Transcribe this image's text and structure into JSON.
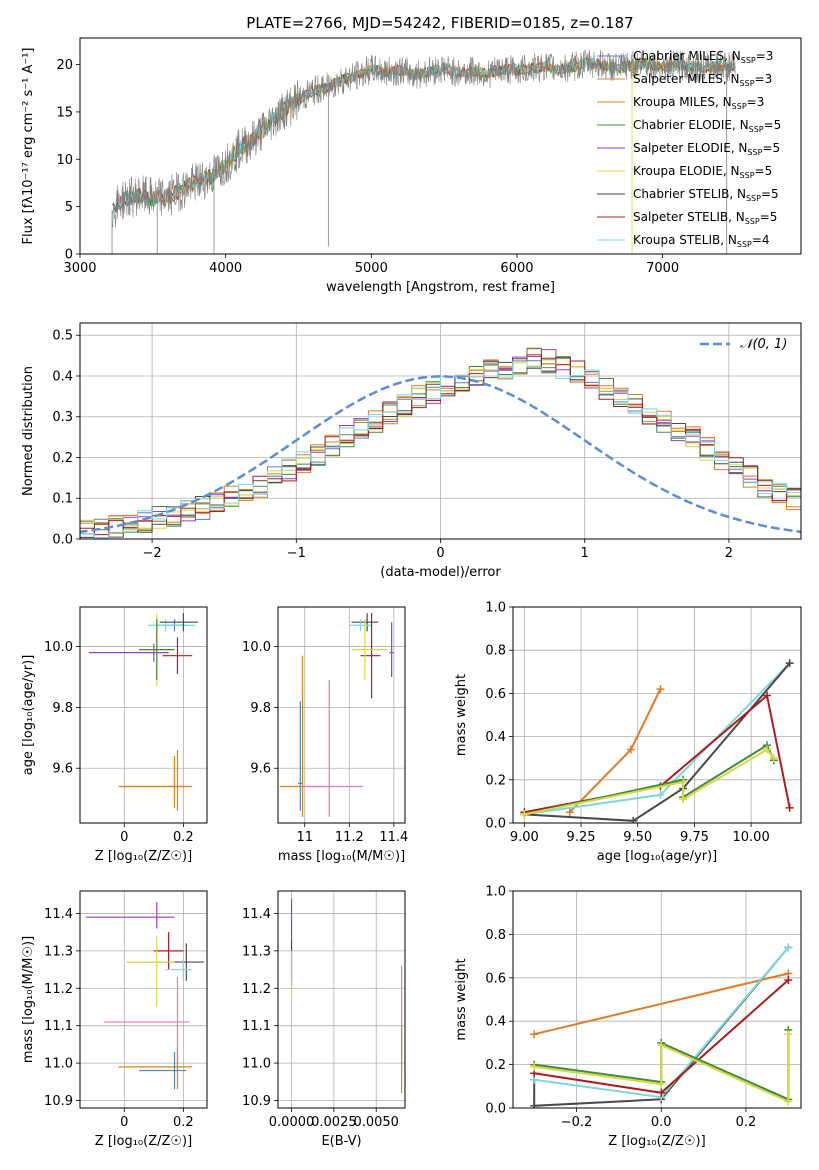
{
  "title": "PLATE=2766, MJD=54242, FIBERID=0185, z=0.187",
  "colors": {
    "Chabrier MILES": "#5b7fbf",
    "Salpeter MILES": "#e07b2a",
    "Kroupa MILES": "#d6861a",
    "Chabrier ELODIE": "#3f8a3f",
    "Salpeter ELODIE": "#9b3fc6",
    "Kroupa ELODIE": "#d4d93f",
    "Chabrier STELIB": "#4a4a4a",
    "Salpeter STELIB": "#b01c1c",
    "Kroupa STELIB": "#7fd6e0",
    "gauss": "#5b8ed6",
    "spectrum": "#808080"
  },
  "chart_data": [
    {
      "type": "line",
      "xlabel": "wavelength [Angstrom, rest frame]",
      "ylabel": "Flux [fλ10⁻¹⁷ erg cm⁻² s⁻¹ A⁻¹]",
      "xlim": [
        3000,
        7950
      ],
      "ylim": [
        0,
        22.8
      ],
      "xticks": [
        3000,
        4000,
        5000,
        6000,
        7000
      ],
      "yticks": [
        0,
        5,
        10,
        15,
        20
      ],
      "spectrum_outline": {
        "x": [
          3220,
          3300,
          3400,
          3500,
          3600,
          3700,
          3800,
          3900,
          4000,
          4100,
          4200,
          4300,
          4400,
          4500,
          4600,
          4700,
          4800,
          4900,
          5000,
          5100,
          5200,
          5300,
          5400,
          5500,
          5600,
          5700,
          5800,
          5900,
          6000,
          6100,
          6200,
          6300,
          6400,
          6500,
          6600,
          6700,
          6800,
          6900,
          7000,
          7100,
          7200,
          7300,
          7400,
          7500
        ],
        "y": [
          4.6,
          5.8,
          6.2,
          5.9,
          6.0,
          6.8,
          7.6,
          8.2,
          9.5,
          11.2,
          12.2,
          13.8,
          15.2,
          16.3,
          17.2,
          17.6,
          18.4,
          18.8,
          19.5,
          19.2,
          19.4,
          18.9,
          19.3,
          19.6,
          19.1,
          19.3,
          19.0,
          19.5,
          19.4,
          19.6,
          19.8,
          19.5,
          19.8,
          20.2,
          19.9,
          19.6,
          20.0,
          20.1,
          19.7,
          19.9,
          19.8,
          19.6,
          19.9,
          19.7
        ]
      },
      "legend": [
        {
          "label": "Chabrier MILES, N",
          "sub": "SSP",
          "tail": "=3"
        },
        {
          "label": "Salpeter MILES, N",
          "sub": "SSP",
          "tail": "=3"
        },
        {
          "label": "Kroupa MILES, N",
          "sub": "SSP",
          "tail": "=3"
        },
        {
          "label": "Chabrier ELODIE, N",
          "sub": "SSP",
          "tail": "=5"
        },
        {
          "label": "Salpeter ELODIE, N",
          "sub": "SSP",
          "tail": "=5"
        },
        {
          "label": "Kroupa ELODIE, N",
          "sub": "SSP",
          "tail": "=5"
        },
        {
          "label": "Chabrier STELIB, N",
          "sub": "SSP",
          "tail": "=5"
        },
        {
          "label": "Salpeter STELIB, N",
          "sub": "SSP",
          "tail": "=5"
        },
        {
          "label": "Kroupa STELIB, N",
          "sub": "SSP",
          "tail": "=4"
        }
      ]
    },
    {
      "type": "histogram",
      "xlabel": "(data-model)/error",
      "ylabel": "Normed distribution",
      "xlim": [
        -2.5,
        2.5
      ],
      "ylim": [
        0,
        0.53
      ],
      "xticks": [
        -2,
        -1,
        0,
        1,
        2
      ],
      "xticklabels": [
        "−2",
        "−1",
        "0",
        "1",
        "2"
      ],
      "yticks": [
        0.0,
        0.1,
        0.2,
        0.3,
        0.4,
        0.5
      ],
      "bin_width": 0.1,
      "bin_start": -2.5,
      "base_heights": [
        0.02,
        0.025,
        0.03,
        0.035,
        0.04,
        0.05,
        0.06,
        0.07,
        0.075,
        0.09,
        0.1,
        0.11,
        0.13,
        0.15,
        0.17,
        0.19,
        0.21,
        0.23,
        0.25,
        0.27,
        0.29,
        0.31,
        0.33,
        0.35,
        0.36,
        0.375,
        0.39,
        0.4,
        0.41,
        0.42,
        0.43,
        0.44,
        0.435,
        0.42,
        0.41,
        0.39,
        0.37,
        0.35,
        0.33,
        0.31,
        0.29,
        0.27,
        0.25,
        0.22,
        0.2,
        0.17,
        0.15,
        0.13,
        0.11,
        0.1,
        0.09,
        0.08,
        0.07,
        0.06,
        0.055,
        0.05,
        0.045,
        0.04,
        0.035,
        0.03
      ],
      "gauss_label": "𝒩(0, 1)"
    },
    {
      "type": "scatter",
      "xlabel": "Z [log₁₀(Z/Z☉)]",
      "ylabel": "age  [log₁₀(age/yr)]",
      "xlim": [
        -0.15,
        0.28
      ],
      "ylim": [
        9.42,
        10.13
      ],
      "xticks": [
        0.0,
        0.2
      ],
      "yticks": [
        9.6,
        9.8,
        10.0
      ],
      "points": [
        {
          "s": "Chabrier MILES",
          "x": 0.17,
          "y": 10.07,
          "ex": [
            0.06,
            0.04
          ],
          "ey": [
            0.02,
            0.02
          ]
        },
        {
          "s": "Kroupa STELIB",
          "x": 0.14,
          "y": 10.07,
          "ex": [
            0.06,
            0.1
          ],
          "ey": [
            0.02,
            0.02
          ]
        },
        {
          "s": "Chabrier STELIB",
          "x": 0.2,
          "y": 10.08,
          "ex": [
            0.08,
            0.05
          ],
          "ey": [
            0.03,
            0.03
          ]
        },
        {
          "s": "Salpeter ELODIE",
          "x": 0.1,
          "y": 9.98,
          "ex": [
            0.22,
            0.05
          ],
          "ey": [
            0.03,
            0.03
          ]
        },
        {
          "s": "Kroupa ELODIE",
          "x": 0.11,
          "y": 9.99,
          "ex": [
            0.05,
            0.05
          ],
          "ey": [
            0.12,
            0.12
          ]
        },
        {
          "s": "Chabrier ELODIE",
          "x": 0.11,
          "y": 9.99,
          "ex": [
            0.06,
            0.06
          ],
          "ey": [
            0.1,
            0.1
          ]
        },
        {
          "s": "Salpeter STELIB",
          "x": 0.18,
          "y": 9.97,
          "ex": [
            0.05,
            0.05
          ],
          "ey": [
            0.06,
            0.06
          ]
        },
        {
          "s": "Salpeter MILES",
          "x": 0.18,
          "y": 9.54,
          "ex": [
            0.2,
            0.05
          ],
          "ey": [
            0.08,
            0.12
          ]
        },
        {
          "s": "Kroupa MILES",
          "x": 0.17,
          "y": 9.54,
          "ex": [
            0.18,
            0.04
          ],
          "ey": [
            0.07,
            0.1
          ]
        }
      ]
    },
    {
      "type": "scatter",
      "xlabel": "mass [log₁₀(M/M☉)]",
      "ylabel": "",
      "xlim": [
        10.88,
        11.45
      ],
      "ylim": [
        9.42,
        10.13
      ],
      "xticks": [
        11.0,
        11.2,
        11.4
      ],
      "yticks": [
        9.6,
        9.8,
        10.0
      ],
      "points": [
        {
          "s": "Chabrier MILES",
          "x": 10.98,
          "y": 9.55,
          "ex": [
            0.01,
            0.01
          ],
          "ey": [
            0.09,
            0.27
          ]
        },
        {
          "s": "Kroupa MILES",
          "x": 10.99,
          "y": 9.54,
          "ex": [
            0.1,
            0.1
          ],
          "ey": [
            0.1,
            0.43
          ]
        },
        {
          "s": "Salpeter ELODIE",
          "x": 11.39,
          "y": 9.98,
          "ex": [
            0.01,
            0.01
          ],
          "ey": [
            0.08,
            0.1
          ]
        },
        {
          "s": "Chabrier STELIB",
          "x": 11.28,
          "y": 10.08,
          "ex": [
            0.07,
            0.05
          ],
          "ey": [
            0.03,
            0.03
          ]
        },
        {
          "s": "Kroupa STELIB",
          "x": 11.25,
          "y": 10.07,
          "ex": [
            0.05,
            0.05
          ],
          "ey": [
            0.02,
            0.02
          ]
        },
        {
          "s": "Salpeter STELIB",
          "x": 11.3,
          "y": 9.97,
          "ex": [
            0.05,
            0.04
          ],
          "ey": [
            0.14,
            0.14
          ]
        },
        {
          "s": "Kroupa ELODIE",
          "x": 11.27,
          "y": 9.99,
          "ex": [
            0.06,
            0.1
          ],
          "ey": [
            0.1,
            0.1
          ]
        },
        {
          "s": "pink",
          "x": 11.11,
          "y": 9.54,
          "ex": [
            0.12,
            0.15
          ],
          "ey": [
            0.1,
            0.35
          ]
        }
      ]
    },
    {
      "type": "line",
      "xlabel": "age  [log₁₀(age/yr)]",
      "ylabel": "mass weight",
      "xlim": [
        8.95,
        10.22
      ],
      "ylim": [
        0,
        1.0
      ],
      "xticks": [
        9.0,
        9.25,
        9.5,
        9.75,
        10.0
      ],
      "xticklabels": [
        "9.00",
        "9.25",
        "9.50",
        "9.75",
        "10.00"
      ],
      "yticks": [
        0.0,
        0.2,
        0.4,
        0.6,
        0.8,
        1.0
      ],
      "series": [
        {
          "s": "Salpeter MILES",
          "x": [
            9.2,
            9.47,
            9.6
          ],
          "y": [
            0.05,
            0.34,
            0.62
          ]
        },
        {
          "s": "Kroupa STELIB",
          "x": [
            9.0,
            9.6,
            10.17
          ],
          "y": [
            0.04,
            0.13,
            0.74
          ]
        },
        {
          "s": "Chabrier STELIB",
          "x": [
            9.0,
            9.48,
            9.7,
            10.17
          ],
          "y": [
            0.04,
            0.01,
            0.16,
            0.74
          ]
        },
        {
          "s": "Salpeter STELIB",
          "x": [
            9.0,
            9.6,
            10.07,
            10.17
          ],
          "y": [
            0.05,
            0.17,
            0.59,
            0.07
          ]
        },
        {
          "s": "Chabrier ELODIE",
          "x": [
            9.0,
            9.7,
            9.7,
            10.07,
            10.1
          ],
          "y": [
            0.04,
            0.2,
            0.12,
            0.36,
            0.29
          ]
        },
        {
          "s": "Kroupa ELODIE",
          "x": [
            9.0,
            9.7,
            9.7,
            10.07,
            10.1
          ],
          "y": [
            0.04,
            0.19,
            0.11,
            0.34,
            0.3
          ]
        }
      ]
    },
    {
      "type": "scatter",
      "xlabel": "Z [log₁₀(Z/Z☉)]",
      "ylabel": "mass [log₁₀(M/M☉)]",
      "xlim": [
        -0.15,
        0.28
      ],
      "ylim": [
        10.88,
        11.46
      ],
      "xticks": [
        0.0,
        0.2
      ],
      "yticks": [
        10.9,
        11.0,
        11.1,
        11.2,
        11.3,
        11.4
      ],
      "points": [
        {
          "s": "Salpeter ELODIE",
          "x": 0.11,
          "y": 11.39,
          "ex": [
            0.24,
            0.06
          ],
          "ey": [
            0.03,
            0.04
          ]
        },
        {
          "s": "Salpeter STELIB",
          "x": 0.15,
          "y": 11.3,
          "ex": [
            0.05,
            0.05
          ],
          "ey": [
            0.05,
            0.05
          ]
        },
        {
          "s": "Chabrier STELIB",
          "x": 0.21,
          "y": 11.27,
          "ex": [
            0.2,
            0.06
          ],
          "ey": [
            0.05,
            0.05
          ]
        },
        {
          "s": "Kroupa ELODIE",
          "x": 0.11,
          "y": 11.27,
          "ex": [
            0.1,
            0.06
          ],
          "ey": [
            0.12,
            0.07
          ]
        },
        {
          "s": "Kroupa STELIB",
          "x": 0.2,
          "y": 11.25,
          "ex": [
            0.06,
            0.03
          ],
          "ey": [
            0.03,
            0.03
          ]
        },
        {
          "s": "pink",
          "x": 0.18,
          "y": 11.11,
          "ex": [
            0.25,
            0.04
          ],
          "ey": [
            0.12,
            0.12
          ]
        },
        {
          "s": "Kroupa MILES",
          "x": 0.18,
          "y": 10.99,
          "ex": [
            0.2,
            0.05
          ],
          "ey": [
            0.06,
            0.05
          ]
        },
        {
          "s": "Chabrier MILES",
          "x": 0.17,
          "y": 10.98,
          "ex": [
            0.12,
            0.04
          ],
          "ey": [
            0.05,
            0.05
          ]
        }
      ]
    },
    {
      "type": "scatter",
      "xlabel": "E(B-V)",
      "ylabel": "",
      "xlim": [
        -0.0008,
        0.0067
      ],
      "ylim": [
        10.88,
        11.46
      ],
      "xticks": [
        0.0,
        0.0025,
        0.005
      ],
      "xticklabels": [
        "0.0000",
        "0.0025",
        "0.0050"
      ],
      "yticks": [
        10.9,
        11.0,
        11.1,
        11.2,
        11.3,
        11.4
      ],
      "points": [
        {
          "s": "Salpeter ELODIE",
          "x": 0.0,
          "y": 11.39,
          "ex": [
            0,
            0
          ],
          "ey": [
            0.06,
            0.05
          ]
        },
        {
          "s": "Chabrier STELIB",
          "x": 0.0,
          "y": 11.28,
          "ex": [
            0,
            0
          ],
          "ey": [
            0.06,
            0.05
          ]
        },
        {
          "s": "Kroupa ELODIE",
          "x": 0.0,
          "y": 11.22,
          "ex": [
            0,
            0
          ],
          "ey": [
            0.06,
            0.05
          ]
        },
        {
          "s": "Kroupa STELIB",
          "x": 0.0,
          "y": 11.25,
          "ex": [
            0,
            0
          ],
          "ey": [
            0.05,
            0.05
          ]
        },
        {
          "s": "pink",
          "x": 0.0065,
          "y": 11.11,
          "ex": [
            0,
            0
          ],
          "ey": [
            0.12,
            0.15
          ]
        },
        {
          "s": "Kroupa MILES",
          "x": 0.0065,
          "y": 11.0,
          "ex": [
            0,
            0
          ],
          "ey": [
            0.08,
            0.1
          ]
        }
      ]
    },
    {
      "type": "line",
      "xlabel": "Z [log₁₀(Z/Z☉)]",
      "ylabel": "mass weight",
      "xlim": [
        -0.35,
        0.33
      ],
      "ylim": [
        0,
        1.0
      ],
      "xticks": [
        -0.2,
        0.0,
        0.2
      ],
      "xticklabels": [
        "−0.2",
        "0.0",
        "0.2"
      ],
      "yticks": [
        0.0,
        0.2,
        0.4,
        0.6,
        0.8,
        1.0
      ],
      "series": [
        {
          "s": "Salpeter MILES",
          "x": [
            -0.3,
            0.3
          ],
          "y": [
            0.34,
            0.62
          ]
        },
        {
          "s": "Chabrier STELIB",
          "x": [
            -0.3,
            -0.3,
            0.0,
            0.3
          ],
          "y": [
            0.13,
            0.01,
            0.04,
            0.74
          ]
        },
        {
          "s": "Kroupa STELIB",
          "x": [
            -0.3,
            0.0,
            0.3
          ],
          "y": [
            0.13,
            0.05,
            0.74
          ]
        },
        {
          "s": "Salpeter STELIB",
          "x": [
            -0.3,
            0.0,
            0.3
          ],
          "y": [
            0.16,
            0.07,
            0.59
          ]
        },
        {
          "s": "Chabrier ELODIE",
          "x": [
            -0.3,
            0.0,
            0.0,
            0.3,
            0.3
          ],
          "y": [
            0.2,
            0.12,
            0.3,
            0.04,
            0.36
          ]
        },
        {
          "s": "Kroupa ELODIE",
          "x": [
            -0.3,
            0.0,
            0.0,
            0.3,
            0.3
          ],
          "y": [
            0.19,
            0.11,
            0.29,
            0.03,
            0.34
          ]
        }
      ]
    }
  ]
}
